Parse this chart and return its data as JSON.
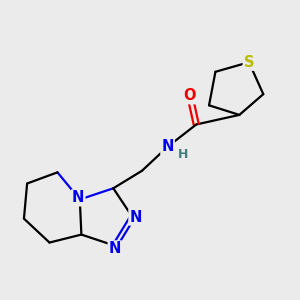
{
  "bg_color": "#ebebeb",
  "atom_colors": {
    "C": "#000000",
    "N": "#0000ee",
    "O": "#ee0000",
    "S": "#bbbb00",
    "H": "#408080"
  },
  "bond_lw": 1.6,
  "font_size": 10.5,
  "xlim": [
    0,
    10
  ],
  "ylim": [
    0,
    10
  ]
}
